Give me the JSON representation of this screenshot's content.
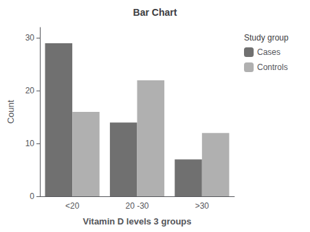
{
  "chart_data": {
    "type": "bar",
    "title": "Bar Chart",
    "xlabel": "Vitamin D levels 3 groups",
    "ylabel": "Count",
    "categories": [
      "<20",
      "20 -30",
      ">30"
    ],
    "series": [
      {
        "name": "Cases",
        "color": "#707070",
        "values": [
          29,
          14,
          7
        ]
      },
      {
        "name": "Controls",
        "color": "#b0b0b0",
        "values": [
          16,
          22,
          12
        ]
      }
    ],
    "ylim": [
      0,
      32
    ],
    "yticks": [
      0,
      10,
      20,
      30
    ],
    "legend_title": "Study group",
    "legend": "right",
    "grid": false
  }
}
